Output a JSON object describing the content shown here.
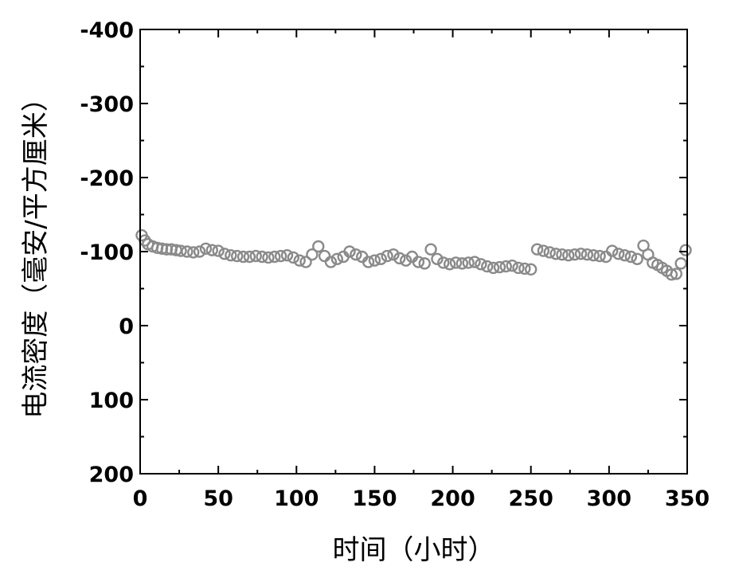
{
  "chart_data": {
    "type": "scatter",
    "title": "",
    "xlabel": "时间（小时）",
    "ylabel": "电流密度（毫安/平方厘米）",
    "xlim": [
      0,
      350
    ],
    "ylim": [
      200,
      -400
    ],
    "y_inverted": true,
    "grid": false,
    "legend": "none",
    "x_ticks": [
      "0",
      "50",
      "100",
      "150",
      "200",
      "250",
      "300",
      "350"
    ],
    "y_ticks": [
      "-400",
      "-300",
      "-200",
      "-100",
      "0",
      "100",
      "200"
    ],
    "marker": "open-circle",
    "marker_color": "#8a8a8a",
    "series": [
      {
        "x": [
          1,
          3,
          5,
          8,
          11,
          14,
          17,
          20,
          23,
          26,
          30,
          34,
          38,
          42,
          46,
          50,
          54,
          58,
          62,
          66,
          70,
          74,
          78,
          82,
          86,
          90,
          94,
          98,
          102,
          106,
          110,
          114,
          118,
          122,
          126,
          130,
          134,
          138,
          142,
          146,
          150,
          154,
          158,
          162,
          166,
          170,
          174,
          178,
          182,
          186,
          190,
          194,
          198,
          202,
          206,
          210,
          214,
          218,
          222,
          226,
          230,
          234,
          238,
          242,
          246,
          250,
          254,
          258,
          262,
          266,
          270,
          274,
          278,
          282,
          286,
          290,
          294,
          298,
          302,
          306,
          310,
          314,
          318,
          322,
          325,
          328,
          331,
          334,
          337,
          340,
          343,
          346,
          349
        ],
        "y": [
          -122,
          -115,
          -110,
          -107,
          -105,
          -104,
          -103,
          -103,
          -102,
          -101,
          -100,
          -99,
          -100,
          -104,
          -102,
          -101,
          -97,
          -95,
          -94,
          -93,
          -93,
          -94,
          -93,
          -92,
          -93,
          -94,
          -95,
          -92,
          -88,
          -86,
          -96,
          -107,
          -94,
          -86,
          -90,
          -93,
          -100,
          -96,
          -93,
          -86,
          -88,
          -90,
          -94,
          -96,
          -91,
          -88,
          -93,
          -86,
          -84,
          -103,
          -90,
          -85,
          -83,
          -85,
          -84,
          -85,
          -86,
          -83,
          -80,
          -78,
          -79,
          -80,
          -81,
          -78,
          -77,
          -76,
          -103,
          -101,
          -99,
          -97,
          -96,
          -95,
          -96,
          -97,
          -96,
          -95,
          -94,
          -93,
          -101,
          -97,
          -95,
          -93,
          -90,
          -108,
          -96,
          -85,
          -82,
          -78,
          -74,
          -69,
          -70,
          -84,
          -102
        ]
      }
    ]
  }
}
